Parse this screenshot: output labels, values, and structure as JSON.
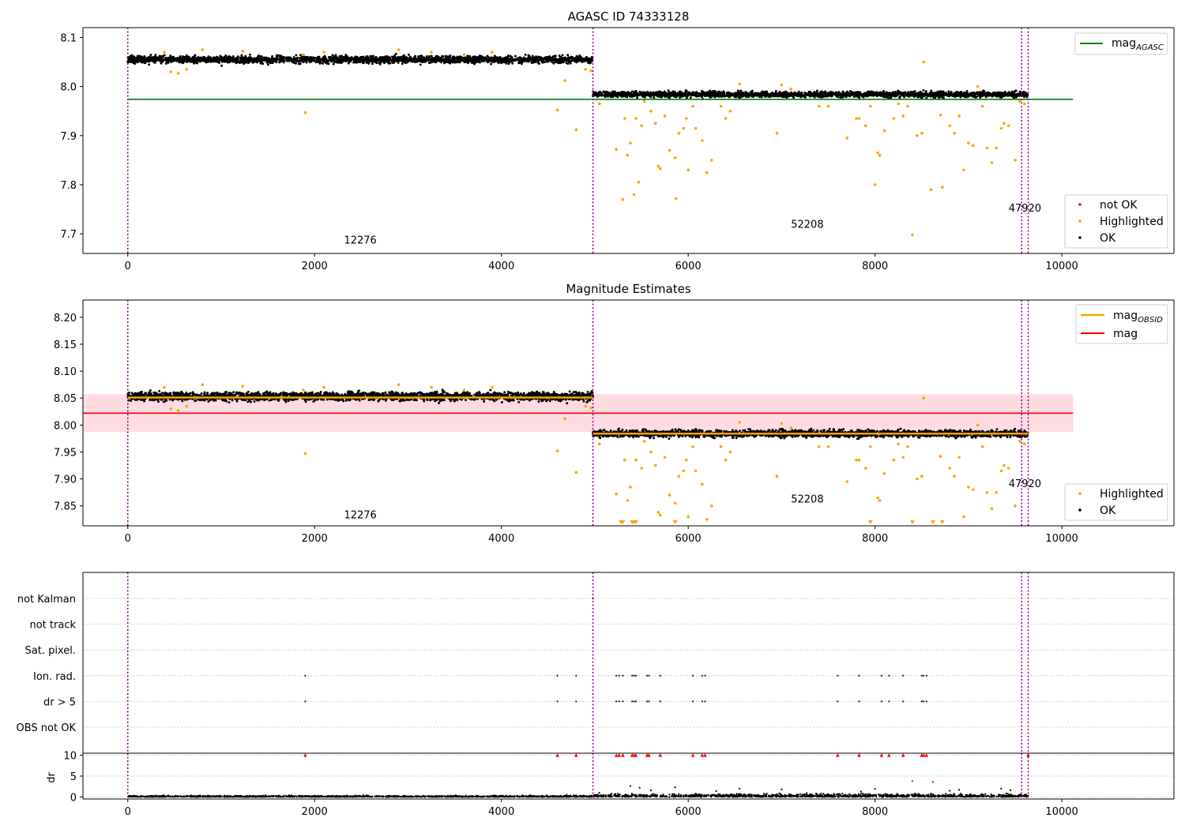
{
  "chart_data": [
    {
      "type": "scatter",
      "title": "AGASC ID 74333128",
      "xlim": [
        -480,
        11200
      ],
      "ylim": [
        7.66,
        8.12
      ],
      "xticks": [
        "0",
        "2000",
        "4000",
        "6000",
        "8000",
        "10000"
      ],
      "xtick_values": [
        0,
        2000,
        4000,
        6000,
        8000,
        10000
      ],
      "yticks": [
        "7.7",
        "7.8",
        "7.9",
        "8.0",
        "8.1"
      ],
      "ytick_values": [
        7.7,
        7.8,
        7.9,
        8.0,
        8.1
      ],
      "obsid_boundaries": [
        0,
        4980,
        9570,
        9640
      ],
      "obsid_labels": [
        {
          "text": "12276",
          "x": 2490,
          "y": 7.68
        },
        {
          "text": "52208",
          "x": 7275,
          "y": 7.712
        },
        {
          "text": "47920",
          "x": 9605,
          "y": 7.745
        }
      ],
      "mag_agasc": 7.974,
      "mag_line_range": [
        0,
        10120
      ],
      "series": [
        {
          "name": "not OK",
          "color": "#ff0000"
        },
        {
          "name": "Highlighted",
          "color": "#ffa500"
        },
        {
          "name": "OK",
          "color": "#000000"
        }
      ],
      "ok_segments": [
        {
          "x0": 0,
          "x1": 4980,
          "level": 8.055,
          "spread": 0.009
        },
        {
          "x0": 4980,
          "x1": 9640,
          "level": 7.984,
          "spread": 0.007
        }
      ],
      "highlighted_points": [
        [
          390,
          8.07
        ],
        [
          460,
          8.03
        ],
        [
          540,
          8.027
        ],
        [
          630,
          8.035
        ],
        [
          800,
          8.075
        ],
        [
          1230,
          8.072
        ],
        [
          1880,
          8.065
        ],
        [
          1900,
          7.947
        ],
        [
          2100,
          8.07
        ],
        [
          2900,
          8.075
        ],
        [
          3250,
          8.07
        ],
        [
          3600,
          8.065
        ],
        [
          3900,
          8.07
        ],
        [
          4600,
          7.952
        ],
        [
          4680,
          8.012
        ],
        [
          4800,
          7.912
        ],
        [
          4900,
          8.035
        ],
        [
          4960,
          8.032
        ],
        [
          5050,
          7.965
        ],
        [
          5230,
          7.872
        ],
        [
          5300,
          7.77
        ],
        [
          5320,
          7.935
        ],
        [
          5350,
          7.86
        ],
        [
          5380,
          7.885
        ],
        [
          5420,
          7.78
        ],
        [
          5440,
          7.935
        ],
        [
          5470,
          7.805
        ],
        [
          5500,
          7.92
        ],
        [
          5530,
          7.97
        ],
        [
          5600,
          7.95
        ],
        [
          5650,
          7.925
        ],
        [
          5680,
          7.838
        ],
        [
          5700,
          7.833
        ],
        [
          5750,
          7.94
        ],
        [
          5800,
          7.87
        ],
        [
          5860,
          7.855
        ],
        [
          5870,
          7.772
        ],
        [
          5900,
          7.905
        ],
        [
          5950,
          7.915
        ],
        [
          5980,
          7.935
        ],
        [
          6000,
          7.83
        ],
        [
          6050,
          7.96
        ],
        [
          6080,
          7.915
        ],
        [
          6150,
          7.89
        ],
        [
          6200,
          7.825
        ],
        [
          6250,
          7.85
        ],
        [
          6350,
          7.96
        ],
        [
          6400,
          7.935
        ],
        [
          6450,
          7.95
        ],
        [
          6550,
          8.005
        ],
        [
          6950,
          7.905
        ],
        [
          7000,
          8.003
        ],
        [
          7100,
          7.995
        ],
        [
          7400,
          7.96
        ],
        [
          7500,
          7.96
        ],
        [
          7700,
          7.895
        ],
        [
          7800,
          7.935
        ],
        [
          7830,
          7.935
        ],
        [
          7900,
          7.92
        ],
        [
          7950,
          7.96
        ],
        [
          8000,
          7.8
        ],
        [
          8030,
          7.865
        ],
        [
          8050,
          7.86
        ],
        [
          8100,
          7.91
        ],
        [
          8200,
          7.935
        ],
        [
          8250,
          7.965
        ],
        [
          8300,
          7.94
        ],
        [
          8350,
          7.96
        ],
        [
          8400,
          7.698
        ],
        [
          8450,
          7.9
        ],
        [
          8500,
          7.905
        ],
        [
          8520,
          8.05
        ],
        [
          8600,
          7.79
        ],
        [
          8700,
          7.942
        ],
        [
          8720,
          7.795
        ],
        [
          8800,
          7.92
        ],
        [
          8850,
          7.905
        ],
        [
          8900,
          7.94
        ],
        [
          8950,
          7.83
        ],
        [
          9000,
          7.885
        ],
        [
          9050,
          7.88
        ],
        [
          9100,
          8.0
        ],
        [
          9150,
          7.96
        ],
        [
          9200,
          7.875
        ],
        [
          9250,
          7.845
        ],
        [
          9300,
          7.875
        ],
        [
          9350,
          7.915
        ],
        [
          9380,
          7.925
        ],
        [
          9430,
          7.92
        ],
        [
          9500,
          7.85
        ],
        [
          9550,
          7.97
        ],
        [
          9600,
          7.965
        ]
      ]
    },
    {
      "type": "scatter",
      "title": "Magnitude Estimates",
      "xlim": [
        -480,
        11200
      ],
      "ylim": [
        7.813,
        8.232
      ],
      "xticks": [
        "0",
        "2000",
        "4000",
        "6000",
        "8000",
        "10000"
      ],
      "xtick_values": [
        0,
        2000,
        4000,
        6000,
        8000,
        10000
      ],
      "yticks": [
        "7.85",
        "7.90",
        "7.95",
        "8.00",
        "8.05",
        "8.10",
        "8.15",
        "8.20"
      ],
      "ytick_values": [
        7.85,
        7.9,
        7.95,
        8.0,
        8.05,
        8.1,
        8.15,
        8.2
      ],
      "obsid_boundaries": [
        0,
        4980,
        9570,
        9640
      ],
      "obsid_labels": [
        {
          "text": "12276",
          "x": 2490,
          "y": 7.827
        },
        {
          "text": "52208",
          "x": 7275,
          "y": 7.856
        },
        {
          "text": "47920",
          "x": 9605,
          "y": 7.885
        }
      ],
      "mag": 8.022,
      "mag_band": [
        7.987,
        8.057
      ],
      "mag_line_range": [
        0,
        10120
      ],
      "mag_obsid": [
        {
          "x0": 0,
          "x1": 4980,
          "value": 8.051
        },
        {
          "x0": 4980,
          "x1": 9640,
          "value": 7.984
        }
      ],
      "series": [
        {
          "name": "Highlighted",
          "color": "#ffa500"
        },
        {
          "name": "OK",
          "color": "#000000"
        }
      ],
      "ok_segments": [
        {
          "x0": 0,
          "x1": 4980,
          "level": 8.053,
          "spread": 0.01
        },
        {
          "x0": 4980,
          "x1": 9640,
          "level": 7.984,
          "spread": 0.008
        }
      ],
      "highlighted_points": [
        [
          390,
          8.07
        ],
        [
          460,
          8.03
        ],
        [
          540,
          8.027
        ],
        [
          630,
          8.035
        ],
        [
          800,
          8.075
        ],
        [
          1230,
          8.072
        ],
        [
          1880,
          8.065
        ],
        [
          1900,
          7.947
        ],
        [
          2100,
          8.07
        ],
        [
          2900,
          8.075
        ],
        [
          3250,
          8.07
        ],
        [
          3600,
          8.065
        ],
        [
          3900,
          8.07
        ],
        [
          4600,
          7.952
        ],
        [
          4680,
          8.012
        ],
        [
          4800,
          7.912
        ],
        [
          4900,
          8.035
        ],
        [
          4960,
          8.032
        ],
        [
          5050,
          7.965
        ],
        [
          5230,
          7.872
        ],
        [
          5320,
          7.935
        ],
        [
          5350,
          7.86
        ],
        [
          5380,
          7.885
        ],
        [
          5440,
          7.935
        ],
        [
          5500,
          7.92
        ],
        [
          5530,
          7.97
        ],
        [
          5600,
          7.95
        ],
        [
          5650,
          7.925
        ],
        [
          5680,
          7.838
        ],
        [
          5700,
          7.833
        ],
        [
          5750,
          7.94
        ],
        [
          5800,
          7.87
        ],
        [
          5860,
          7.855
        ],
        [
          5900,
          7.905
        ],
        [
          5950,
          7.915
        ],
        [
          5980,
          7.935
        ],
        [
          6000,
          7.83
        ],
        [
          6050,
          7.96
        ],
        [
          6080,
          7.915
        ],
        [
          6150,
          7.89
        ],
        [
          6200,
          7.825
        ],
        [
          6250,
          7.85
        ],
        [
          6350,
          7.96
        ],
        [
          6400,
          7.935
        ],
        [
          6450,
          7.95
        ],
        [
          6550,
          8.005
        ],
        [
          6950,
          7.905
        ],
        [
          7000,
          8.003
        ],
        [
          7100,
          7.995
        ],
        [
          7400,
          7.96
        ],
        [
          7500,
          7.96
        ],
        [
          7700,
          7.895
        ],
        [
          7800,
          7.935
        ],
        [
          7830,
          7.935
        ],
        [
          7900,
          7.92
        ],
        [
          7950,
          7.96
        ],
        [
          8030,
          7.865
        ],
        [
          8050,
          7.86
        ],
        [
          8100,
          7.91
        ],
        [
          8200,
          7.935
        ],
        [
          8250,
          7.965
        ],
        [
          8300,
          7.94
        ],
        [
          8350,
          7.96
        ],
        [
          8450,
          7.9
        ],
        [
          8500,
          7.905
        ],
        [
          8520,
          8.05
        ],
        [
          8700,
          7.942
        ],
        [
          8800,
          7.92
        ],
        [
          8850,
          7.905
        ],
        [
          8900,
          7.94
        ],
        [
          8950,
          7.83
        ],
        [
          9000,
          7.885
        ],
        [
          9050,
          7.88
        ],
        [
          9100,
          8.0
        ],
        [
          9150,
          7.96
        ],
        [
          9200,
          7.875
        ],
        [
          9250,
          7.845
        ],
        [
          9300,
          7.875
        ],
        [
          9350,
          7.915
        ],
        [
          9380,
          7.925
        ],
        [
          9430,
          7.92
        ],
        [
          9500,
          7.85
        ],
        [
          9550,
          7.97
        ],
        [
          9600,
          7.965
        ]
      ],
      "clipped_points_x": [
        5280,
        5300,
        5400,
        5420,
        5440,
        5860,
        7950,
        8400,
        8620,
        8720
      ]
    },
    {
      "type": "scatter",
      "xlim": [
        -480,
        11200
      ],
      "categories": [
        "not Kalman",
        "not track",
        "Sat. pixel.",
        "Ion. rad.",
        "dr > 5",
        "OBS not OK"
      ],
      "obsid_boundaries": [
        0,
        4980,
        9570,
        9640
      ],
      "flag_x": {
        "Ion. rad.": [
          1900,
          4600,
          4800,
          5230,
          5260,
          5300,
          5400,
          5420,
          5440,
          5560,
          5580,
          5700,
          6050,
          6150,
          6180,
          7600,
          7830,
          8070,
          8150,
          8300,
          8500,
          8520,
          8550
        ],
        "dr > 5": [
          1900,
          4600,
          4800,
          5230,
          5260,
          5300,
          5400,
          5420,
          5440,
          5560,
          5580,
          5700,
          6050,
          6150,
          6180,
          7600,
          7830,
          8070,
          8150,
          8300,
          8500,
          8520,
          8550
        ],
        "not Kalman": [
          4980
        ]
      }
    },
    {
      "type": "scatter",
      "xlim": [
        -480,
        11200
      ],
      "ylim": [
        -0.5,
        10.5
      ],
      "ylabel": "dr",
      "xticks": [
        "0",
        "2000",
        "4000",
        "6000",
        "8000",
        "10000"
      ],
      "xtick_values": [
        0,
        2000,
        4000,
        6000,
        8000,
        10000
      ],
      "yticks": [
        "0",
        "5",
        "10"
      ],
      "ytick_values": [
        0,
        5,
        10
      ],
      "obsid_boundaries": [
        0,
        4980,
        9570,
        9640
      ],
      "clip_value": 10,
      "clipped_x": [
        1900,
        4600,
        4800,
        5230,
        5260,
        5300,
        5400,
        5420,
        5440,
        5560,
        5580,
        5700,
        6050,
        6150,
        6180,
        7600,
        7830,
        8070,
        8150,
        8300,
        8500,
        8520,
        8550,
        9640
      ],
      "outliers": [
        [
          8400,
          3.8
        ],
        [
          8620,
          3.6
        ],
        [
          5380,
          2.6
        ],
        [
          5480,
          2.2
        ],
        [
          5860,
          2.3
        ],
        [
          6550,
          2.0
        ],
        [
          7000,
          1.8
        ],
        [
          8000,
          1.9
        ],
        [
          8900,
          1.7
        ],
        [
          9350,
          2.0
        ],
        [
          9450,
          1.6
        ],
        [
          8800,
          1.5
        ],
        [
          6300,
          1.4
        ],
        [
          5600,
          1.6
        ],
        [
          7850,
          1.3
        ]
      ]
    }
  ],
  "legends": {
    "agasc_line": "mag",
    "agasc_sub": "AGASC",
    "obsid_line": "mag",
    "obsid_sub": "OBSID",
    "mag_line": "mag",
    "not_ok": "not OK",
    "highlighted": "Highlighted",
    "ok": "OK",
    "highlighted_2": "Highlighted",
    "ok_2": "OK"
  },
  "colors": {
    "ok": "#000000",
    "highlighted": "#ffa500",
    "not_ok": "#ff0000",
    "agasc_line": "#008000",
    "mag_line": "#ff0000",
    "mag_band": "#ffc0cb",
    "obsid_line": "#ffa500",
    "boundary": "#800080",
    "grid": "#b0b0b0"
  }
}
